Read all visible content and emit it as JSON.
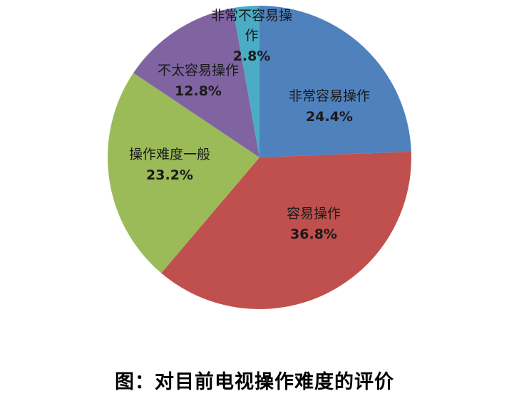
{
  "figure": {
    "background_color": "#ffffff",
    "caption": "图：对目前电视操作难度的评价"
  },
  "chart_data": {
    "type": "pie",
    "title": "图：对目前电视操作难度的评价",
    "categories": [
      "非常容易操作",
      "容易操作",
      "操作难度一般",
      "不太容易操作",
      "非常不容易操作"
    ],
    "values": [
      24.4,
      36.8,
      23.2,
      12.8,
      2.8
    ],
    "pct_labels": [
      "24.4%",
      "36.8%",
      "23.2%",
      "12.8%",
      "2.8%"
    ],
    "colors": [
      "#4f81bd",
      "#c0504d",
      "#9bbb59",
      "#8064a2",
      "#4bacc6"
    ],
    "start_angle_deg": 0,
    "direction": "clockwise",
    "legend": "none",
    "label_style": "category name and percent shown at each slice",
    "label_text_color": "#1a1a1a"
  }
}
